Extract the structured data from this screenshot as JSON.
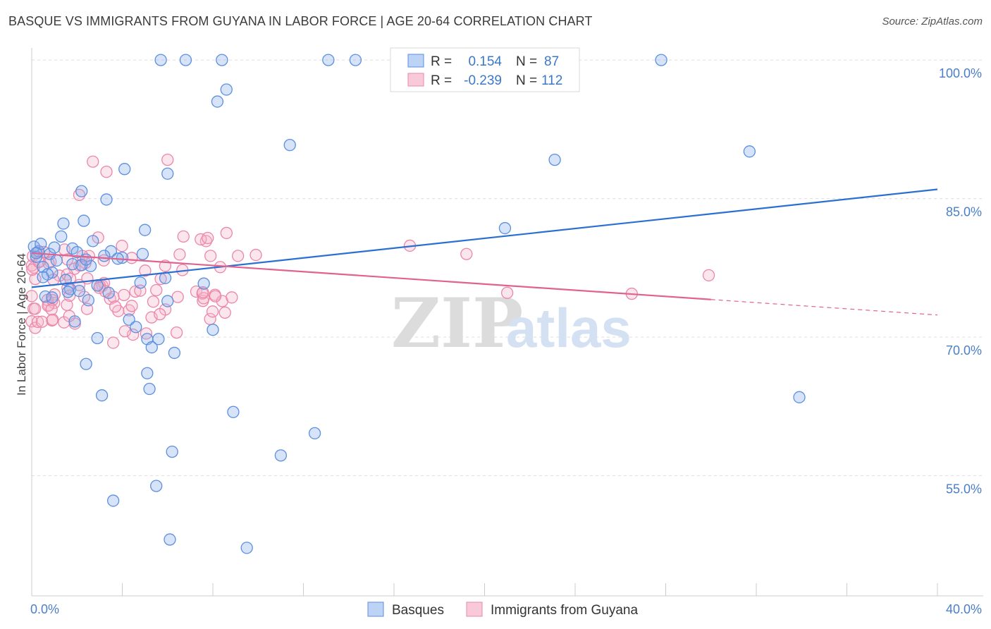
{
  "title": "BASQUE VS IMMIGRANTS FROM GUYANA IN LABOR FORCE | AGE 20-64 CORRELATION CHART",
  "source": "Source: ZipAtlas.com",
  "watermark": {
    "zip": "ZIP",
    "atlas": "atlas"
  },
  "stats": [
    {
      "r_label": "R =",
      "r_value": "0.154",
      "n_label": "N =",
      "n_value": "87"
    },
    {
      "r_label": "R =",
      "r_value": "-0.239",
      "n_label": "N =",
      "n_value": "112"
    }
  ],
  "chart_data": {
    "type": "scatter",
    "title": "BASQUE VS IMMIGRANTS FROM GUYANA IN LABOR FORCE | AGE 20-64 CORRELATION CHART",
    "xlabel": "",
    "ylabel": "In Labor Force | Age 20-64",
    "xlim": [
      0,
      40
    ],
    "ylim": [
      42,
      101
    ],
    "x_tick_labels": [
      "0.0%",
      "40.0%"
    ],
    "y_ticks": [
      55,
      70,
      85,
      100
    ],
    "y_tick_labels": [
      "55.0%",
      "70.0%",
      "85.0%",
      "100.0%"
    ],
    "grid": true,
    "legend_position": "bottom-center",
    "colors": {
      "basques": "#5b8fe0",
      "guyana": "#ec86a8",
      "basques_line": "#2a6fd1",
      "guyana_line": "#e0628e"
    },
    "series": [
      {
        "name": "Basques",
        "color": "#5b8fe0",
        "trend": {
          "x": [
            0,
            40
          ],
          "y": [
            75.4,
            86.0
          ],
          "dashed_from": null
        },
        "points": [
          [
            5.7,
            100
          ],
          [
            6.8,
            100
          ],
          [
            8.4,
            100
          ],
          [
            13.1,
            100
          ],
          [
            14.3,
            100
          ],
          [
            27.8,
            100
          ],
          [
            8.2,
            95.5
          ],
          [
            8.6,
            96.8
          ],
          [
            11.4,
            90.8
          ],
          [
            23.1,
            89.2
          ],
          [
            31.7,
            90.1
          ],
          [
            4.1,
            88.2
          ],
          [
            6.0,
            87.7
          ],
          [
            2.2,
            85.8
          ],
          [
            3.3,
            84.9
          ],
          [
            2.3,
            82.6
          ],
          [
            1.4,
            82.3
          ],
          [
            5.0,
            81.6
          ],
          [
            20.9,
            81.8
          ],
          [
            1.3,
            80.9
          ],
          [
            2.7,
            80.4
          ],
          [
            0.3,
            79.3
          ],
          [
            1.8,
            79.6
          ],
          [
            2.0,
            79.2
          ],
          [
            3.5,
            79.3
          ],
          [
            0.8,
            79.0
          ],
          [
            3.2,
            78.8
          ],
          [
            4.0,
            78.6
          ],
          [
            4.9,
            79.0
          ],
          [
            0.2,
            78.7
          ],
          [
            1.1,
            78.3
          ],
          [
            2.6,
            77.7
          ],
          [
            1.8,
            77.9
          ],
          [
            2.2,
            77.8
          ],
          [
            0.5,
            77.6
          ],
          [
            0.9,
            77.0
          ],
          [
            0.7,
            76.8
          ],
          [
            1.5,
            76.2
          ],
          [
            0.5,
            76.5
          ],
          [
            5.9,
            76.4
          ],
          [
            4.8,
            75.9
          ],
          [
            7.6,
            75.8
          ],
          [
            2.9,
            75.6
          ],
          [
            1.7,
            75.2
          ],
          [
            2.1,
            75.0
          ],
          [
            1.6,
            74.9
          ],
          [
            0.6,
            74.4
          ],
          [
            0.9,
            74.3
          ],
          [
            3.4,
            74.8
          ],
          [
            2.5,
            74.0
          ],
          [
            6.0,
            73.9
          ],
          [
            4.3,
            71.9
          ],
          [
            1.9,
            71.7
          ],
          [
            4.6,
            71.1
          ],
          [
            8.0,
            70.8
          ],
          [
            2.9,
            69.9
          ],
          [
            5.1,
            69.8
          ],
          [
            5.6,
            69.8
          ],
          [
            5.3,
            68.9
          ],
          [
            6.3,
            68.3
          ],
          [
            2.4,
            67.1
          ],
          [
            5.1,
            66.1
          ],
          [
            5.2,
            64.4
          ],
          [
            3.1,
            63.7
          ],
          [
            8.9,
            61.9
          ],
          [
            12.5,
            59.6
          ],
          [
            11.0,
            57.2
          ],
          [
            6.2,
            57.6
          ],
          [
            5.5,
            53.9
          ],
          [
            3.6,
            52.3
          ],
          [
            6.1,
            48.1
          ],
          [
            9.5,
            47.2
          ],
          [
            33.9,
            63.5
          ],
          [
            0.1,
            79.8
          ],
          [
            0.4,
            80.1
          ],
          [
            0.2,
            79.1
          ],
          [
            1.0,
            79.7
          ],
          [
            3.8,
            78.5
          ],
          [
            2.4,
            78.4
          ]
        ]
      },
      {
        "name": "Immigrants from Guyana",
        "color": "#ec86a8",
        "trend": {
          "x": [
            0,
            40
          ],
          "y": [
            79.1,
            72.4
          ],
          "dashed_from": 30
        }
      }
    ]
  },
  "legend": [
    {
      "label": "Basques",
      "color": "#5b8fe0"
    },
    {
      "label": "Immigrants from Guyana",
      "color": "#ec86a8"
    }
  ]
}
